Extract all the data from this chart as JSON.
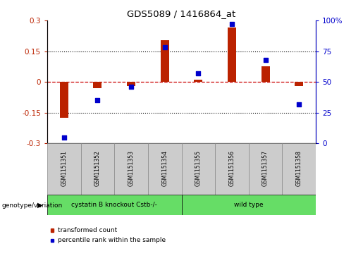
{
  "title": "GDS5089 / 1416864_at",
  "samples": [
    "GSM1151351",
    "GSM1151352",
    "GSM1151353",
    "GSM1151354",
    "GSM1151355",
    "GSM1151356",
    "GSM1151357",
    "GSM1151358"
  ],
  "bar_values": [
    -0.175,
    -0.03,
    -0.02,
    0.205,
    0.01,
    0.265,
    0.075,
    -0.02
  ],
  "dot_values_pct": [
    5,
    35,
    46,
    78,
    57,
    97,
    68,
    32
  ],
  "bar_color": "#bb2200",
  "dot_color": "#0000cc",
  "red_line_color": "#cc0000",
  "ylim_left": [
    -0.3,
    0.3
  ],
  "ylim_right": [
    0,
    100
  ],
  "yticks_left": [
    -0.3,
    -0.15,
    0,
    0.15,
    0.3
  ],
  "ytick_labels_left": [
    "-0.3",
    "-0.15",
    "0",
    "0.15",
    "0.3"
  ],
  "yticks_right": [
    0,
    25,
    50,
    75,
    100
  ],
  "ytick_labels_right": [
    "0",
    "25",
    "50",
    "75",
    "100%"
  ],
  "hlines": [
    0.15,
    -0.15
  ],
  "groups": [
    {
      "label": "cystatin B knockout Cstb-/-",
      "start": 0,
      "end": 3,
      "color": "#66dd66"
    },
    {
      "label": "wild type",
      "start": 4,
      "end": 7,
      "color": "#66dd66"
    }
  ],
  "group_row_label": "genotype/variation",
  "legend_bar_label": "transformed count",
  "legend_dot_label": "percentile rank within the sample",
  "background_color": "#ffffff",
  "tick_area_bg": "#cccccc"
}
